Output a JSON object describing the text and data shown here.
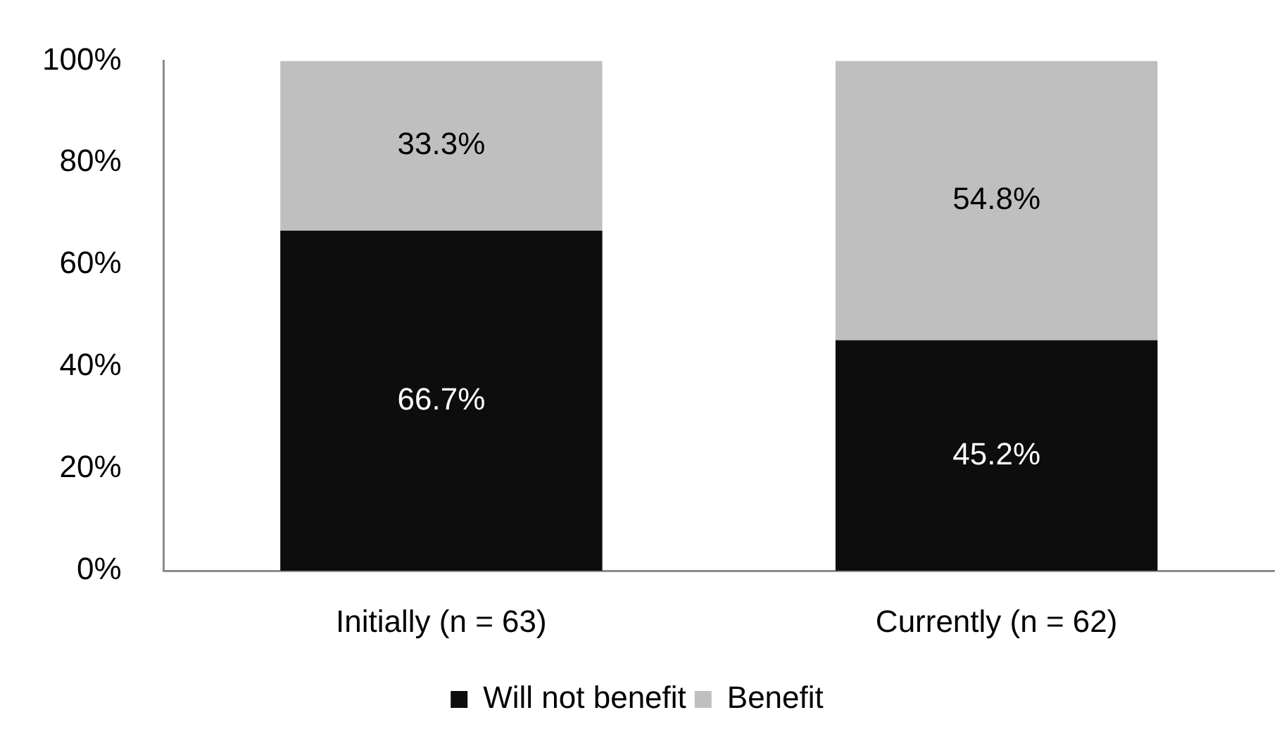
{
  "chart_data": {
    "type": "bar",
    "stacked": true,
    "categories": [
      "Initially (n = 63)",
      "Currently (n = 62)"
    ],
    "series": [
      {
        "name": "Will not benefit",
        "color": "#0d0d0d",
        "values": [
          66.7,
          45.2
        ],
        "value_labels": [
          "66.7%",
          "45.2%"
        ]
      },
      {
        "name": "Benefit",
        "color": "#bfbfbf",
        "values": [
          33.3,
          54.8
        ],
        "value_labels": [
          "33.3%",
          "54.8%"
        ]
      }
    ],
    "ylim": [
      0,
      100
    ],
    "yticks": [
      {
        "value": 0,
        "label": "0%"
      },
      {
        "value": 20,
        "label": "20%"
      },
      {
        "value": 40,
        "label": "40%"
      },
      {
        "value": 60,
        "label": "60%"
      },
      {
        "value": 80,
        "label": "80%"
      },
      {
        "value": 100,
        "label": "100%"
      }
    ],
    "legend": "bottom"
  }
}
